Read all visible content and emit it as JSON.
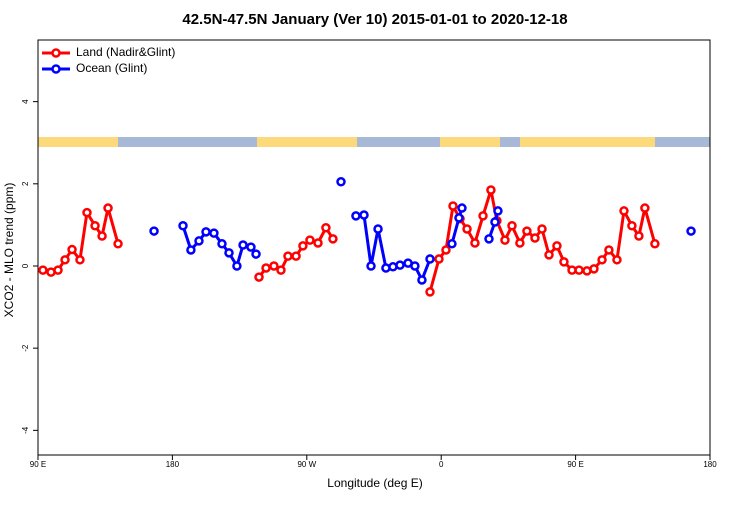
{
  "chart_data": {
    "type": "line",
    "title": "42.5N-47.5N January (Ver 10)   2015-01-01 to 2020-12-18",
    "x_label": "Longitude (deg E)",
    "y_label": "XCO2 - MLO trend (ppm)",
    "xlim": [
      90,
      540
    ],
    "xticks": [
      {
        "value": 90,
        "label": "90 E"
      },
      180,
      {
        "value": 270,
        "label": "90 W"
      },
      {
        "value": 360,
        "label": "0"
      },
      {
        "value": 450,
        "label": "90 E"
      },
      {
        "value": 540,
        "label": "180"
      }
    ],
    "ylim": [
      -4.6,
      5.5
    ],
    "yticks": [
      -4,
      -2,
      0,
      2,
      4
    ],
    "legend": "top-left",
    "series": [
      {
        "name": "Land (Nadir&Glint)",
        "color": "#ff0000",
        "x": [
          93.3,
          98.7,
          103.4,
          108.1,
          112.8,
          118.1,
          122.8,
          128.2,
          132.9,
          136.9,
          143.6,
          null,
          238,
          242.7,
          248,
          252.7,
          257.4,
          262.8,
          267.4,
          272.1,
          277.5,
          282.8,
          287.5,
          null,
          352.5,
          358.5,
          363.2,
          367.9,
          372.6,
          377.3,
          382.6,
          388,
          393.3,
          397.3,
          402.7,
          407.4,
          412.7,
          417.4,
          422.8,
          427.5,
          432.2,
          437.5,
          442.2,
          447.6,
          452.3,
          457.6,
          462.3,
          467.7,
          472.3,
          477.7,
          482.4,
          487.7,
          492.4,
          496.4,
          503.1
        ],
        "values": [
          -0.1,
          -0.15,
          -0.1,
          0.15,
          0.4,
          0.15,
          1.3,
          0.98,
          0.73,
          1.41,
          0.54,
          null,
          -0.27,
          -0.05,
          0,
          -0.1,
          0.24,
          0.24,
          0.49,
          0.63,
          0.56,
          0.93,
          0.66,
          null,
          -0.63,
          0.17,
          0.39,
          1.46,
          1.15,
          0.9,
          0.56,
          1.22,
          1.85,
          1.1,
          0.63,
          0.98,
          0.56,
          0.85,
          0.68,
          0.9,
          0.27,
          0.49,
          0.1,
          -0.1,
          -0.1,
          -0.12,
          -0.07,
          0.15,
          0.39,
          0.15,
          1.34,
          0.98,
          0.73,
          1.41,
          0.54
        ]
      },
      {
        "name": "Ocean (Glint)",
        "color": "#0000ff",
        "x": [
          167.7,
          null,
          187.1,
          192.4,
          197.8,
          202.5,
          207.8,
          213.2,
          217.9,
          223.2,
          227.3,
          232.6,
          236,
          null,
          292.9,
          null,
          302.9,
          308.3,
          313,
          317.7,
          323,
          327.7,
          332.4,
          337.8,
          342.4,
          347.1,
          352.5,
          null,
          367.2,
          371.9,
          373.9,
          null,
          392,
          396,
          398,
          null,
          527.3
        ],
        "values": [
          0.85,
          null,
          0.98,
          0.39,
          0.61,
          0.83,
          0.8,
          0.54,
          0.32,
          0,
          0.51,
          0.46,
          0.29,
          null,
          2.05,
          null,
          1.22,
          1.24,
          0,
          0.9,
          -0.05,
          -0.02,
          0.02,
          0.07,
          0,
          -0.34,
          0.17,
          null,
          0.54,
          1.17,
          1.41,
          null,
          0.66,
          1.07,
          1.34,
          null,
          0.85
        ]
      }
    ]
  }
}
